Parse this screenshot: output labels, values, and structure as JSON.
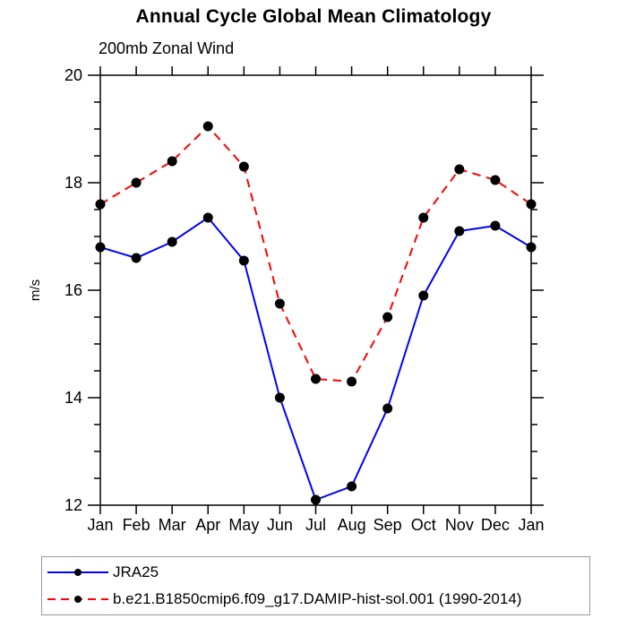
{
  "page": {
    "background": "#ffffff"
  },
  "chart_data": {
    "type": "line",
    "title": "Annual Cycle Global Mean Climatology",
    "subtitle": "200mb Zonal Wind",
    "ylabel": "m/s",
    "xlabel": "",
    "categories": [
      "Jan",
      "Feb",
      "Mar",
      "Apr",
      "May",
      "Jun",
      "Jul",
      "Aug",
      "Sep",
      "Oct",
      "Nov",
      "Dec",
      "Jan"
    ],
    "ylim": [
      12,
      20
    ],
    "yticks": [
      12,
      14,
      16,
      18,
      20
    ],
    "y_minor_step": 0.5,
    "grid": false,
    "legend_position": "bottom",
    "frame_color": "#000000",
    "marker_shape": "filled-circle",
    "series": [
      {
        "name": "JRA25",
        "color": "#0000ff",
        "style": "solid",
        "marker_color": "#000000",
        "values": [
          16.8,
          16.6,
          16.9,
          17.35,
          16.55,
          14.0,
          12.1,
          12.35,
          13.8,
          15.9,
          17.1,
          17.2,
          16.8
        ]
      },
      {
        "name": "b.e21.B1850cmip6.f09_g17.DAMIP-hist-sol.001 (1990-2014)",
        "color": "#ff0000",
        "style": "dashed",
        "marker_color": "#000000",
        "values": [
          17.6,
          18.0,
          18.4,
          19.05,
          18.3,
          15.75,
          14.35,
          14.3,
          15.5,
          17.35,
          18.25,
          18.05,
          17.6
        ]
      }
    ]
  }
}
